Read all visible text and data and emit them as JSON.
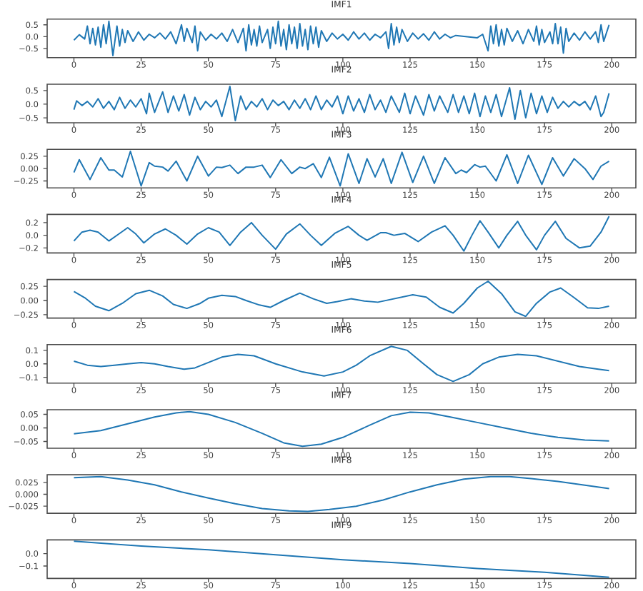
{
  "chart_data": [
    {
      "type": "line",
      "title": "IMF1",
      "color": "#1f77b4",
      "xlim": [
        -9.95,
        208.95
      ],
      "xticks": [
        0,
        25,
        50,
        75,
        100,
        125,
        150,
        175,
        200
      ],
      "ylim": [
        -0.89,
        0.74
      ],
      "yticks": [
        {
          "value": -0.5,
          "label": "−0.5"
        },
        {
          "value": 0,
          "label": "0.0"
        },
        {
          "value": 0.5,
          "label": "0.5"
        }
      ],
      "x": [
        0,
        2,
        4,
        5,
        6,
        7,
        8,
        9,
        10,
        11,
        12,
        13,
        14.5,
        16,
        17,
        18,
        19,
        20,
        22,
        24,
        26,
        28,
        30,
        32,
        34,
        36,
        38,
        40,
        41,
        42,
        44,
        45,
        46,
        47,
        49,
        51,
        53,
        55,
        57,
        59,
        61,
        63,
        64,
        65,
        66,
        67,
        68,
        69,
        70,
        72,
        73,
        74,
        75,
        76,
        77,
        78,
        79,
        80,
        81,
        82,
        83,
        84,
        85,
        86,
        87,
        88,
        89,
        90,
        91,
        92,
        94,
        96,
        98,
        100,
        102,
        104,
        106,
        108,
        110,
        112,
        114,
        116,
        117,
        118,
        119,
        120,
        121,
        122,
        124,
        126,
        128,
        130,
        132,
        134,
        136,
        138,
        140,
        142,
        146,
        150,
        152,
        154,
        155,
        156,
        157,
        158,
        159,
        160,
        161,
        163,
        165,
        167,
        169,
        171,
        172,
        173,
        174,
        175,
        177,
        178,
        179,
        180,
        181,
        182,
        183,
        184,
        186,
        188,
        190,
        192,
        194,
        195,
        196,
        197,
        199
      ],
      "values": [
        -0.15,
        0.08,
        -0.1,
        0.45,
        -0.3,
        0.35,
        -0.35,
        0.4,
        -0.45,
        0.5,
        -0.3,
        0.65,
        -0.8,
        0.45,
        -0.4,
        0.3,
        -0.25,
        0.25,
        -0.2,
        0.2,
        -0.15,
        0.1,
        -0.05,
        0.15,
        -0.1,
        0.2,
        -0.3,
        0.5,
        -0.2,
        0.35,
        -0.25,
        0.45,
        -0.6,
        0.2,
        -0.15,
        0.1,
        -0.1,
        0.15,
        -0.2,
        0.3,
        -0.25,
        0.35,
        -0.6,
        0.5,
        -0.35,
        0.3,
        -0.4,
        0.45,
        -0.25,
        0.3,
        -0.5,
        0.4,
        -0.3,
        0.65,
        -0.4,
        0.3,
        -0.55,
        0.5,
        -0.3,
        0.4,
        -0.5,
        0.55,
        -0.4,
        0.3,
        -0.55,
        0.45,
        -0.3,
        0.4,
        -0.45,
        0.25,
        -0.2,
        0.15,
        -0.1,
        0.1,
        -0.15,
        0.2,
        -0.1,
        0.15,
        -0.15,
        0.1,
        -0.05,
        0.2,
        -0.5,
        0.55,
        -0.35,
        0.4,
        -0.25,
        0.3,
        -0.2,
        0.15,
        -0.1,
        0.12,
        -0.15,
        0.2,
        -0.1,
        0.1,
        -0.05,
        0.05,
        0.0,
        -0.05,
        0.1,
        -0.6,
        0.45,
        -0.3,
        0.5,
        -0.4,
        0.3,
        -0.35,
        0.35,
        -0.2,
        0.25,
        -0.3,
        0.3,
        -0.2,
        0.45,
        -0.35,
        0.3,
        -0.25,
        0.2,
        -0.3,
        0.55,
        -0.3,
        0.4,
        -0.7,
        0.35,
        -0.2,
        0.15,
        -0.15,
        0.2,
        -0.1,
        0.2,
        -0.25,
        0.5,
        -0.2,
        0.5
      ]
    },
    {
      "type": "line",
      "title": "IMF2",
      "color": "#1f77b4",
      "xlim": [
        -9.95,
        208.95
      ],
      "xticks": [
        0,
        25,
        50,
        75,
        100,
        125,
        150,
        175,
        200
      ],
      "ylim": [
        -0.68,
        0.73
      ],
      "yticks": [
        {
          "value": -0.5,
          "label": "−0.5"
        },
        {
          "value": 0,
          "label": "0.0"
        },
        {
          "value": 0.5,
          "label": "0.5"
        }
      ],
      "x": [
        0,
        1,
        3,
        5,
        7,
        9,
        11,
        13,
        15,
        17,
        19,
        21,
        23,
        25,
        27,
        28,
        30,
        33,
        35,
        37,
        39,
        41,
        43,
        45,
        47,
        49,
        51,
        53,
        55,
        58,
        60,
        62,
        64,
        66,
        68,
        70,
        72,
        74,
        76,
        78,
        80,
        82,
        84,
        86,
        88,
        90,
        92,
        94,
        96,
        98,
        100,
        102,
        104,
        106,
        108,
        110,
        112,
        114,
        116,
        118,
        121,
        123,
        125,
        127,
        130,
        132,
        134,
        136,
        139,
        141,
        143,
        145,
        147,
        149,
        151,
        153,
        155,
        157,
        159,
        162,
        164,
        166,
        168,
        170,
        172,
        174,
        176,
        178,
        180,
        182,
        184,
        186,
        188,
        190,
        192,
        194,
        196,
        197,
        199
      ],
      "values": [
        -0.2,
        0.12,
        -0.05,
        0.1,
        -0.1,
        0.2,
        -0.15,
        0.1,
        -0.2,
        0.25,
        -0.15,
        0.15,
        -0.1,
        0.2,
        -0.35,
        0.4,
        -0.3,
        0.45,
        -0.3,
        0.3,
        -0.25,
        0.35,
        -0.4,
        0.25,
        -0.2,
        0.1,
        -0.1,
        0.15,
        -0.45,
        0.65,
        -0.6,
        0.3,
        -0.2,
        0.1,
        -0.1,
        0.2,
        -0.2,
        0.15,
        -0.05,
        0.1,
        -0.2,
        0.15,
        -0.15,
        0.2,
        -0.2,
        0.3,
        -0.2,
        0.15,
        -0.1,
        0.3,
        -0.35,
        0.3,
        -0.25,
        0.2,
        -0.3,
        0.35,
        -0.2,
        0.15,
        -0.3,
        0.3,
        -0.3,
        0.4,
        -0.35,
        0.3,
        -0.4,
        0.35,
        -0.25,
        0.3,
        -0.3,
        0.35,
        -0.3,
        0.3,
        -0.35,
        0.4,
        -0.45,
        0.3,
        -0.3,
        0.35,
        -0.45,
        0.6,
        -0.55,
        0.5,
        -0.5,
        0.4,
        -0.35,
        0.3,
        -0.3,
        0.25,
        -0.15,
        0.1,
        -0.1,
        0.1,
        -0.05,
        0.1,
        -0.2,
        0.3,
        -0.45,
        -0.3,
        0.4
      ]
    },
    {
      "type": "line",
      "title": "IMF3",
      "color": "#1f77b4",
      "xlim": [
        -9.95,
        208.95
      ],
      "xticks": [
        0,
        25,
        50,
        75,
        100,
        125,
        150,
        175,
        200
      ],
      "ylim": [
        -0.39,
        0.39
      ],
      "yticks": [
        {
          "value": -0.25,
          "label": "−0.25"
        },
        {
          "value": 0,
          "label": "0.00"
        },
        0.25
      ],
      "x": [
        0,
        2,
        6,
        10,
        13,
        15,
        18,
        21,
        25,
        28,
        30,
        33,
        35,
        38,
        42,
        46,
        50,
        53,
        55,
        58,
        61,
        64,
        67,
        70,
        73,
        77,
        81,
        84,
        86,
        89,
        92,
        95,
        99,
        102,
        106,
        109,
        112,
        115,
        118,
        122,
        126,
        130,
        134,
        138,
        142,
        144,
        146,
        149,
        151,
        153,
        157,
        161,
        165,
        169,
        174,
        178,
        182,
        186,
        190,
        193,
        196,
        199
      ],
      "values": [
        -0.08,
        0.18,
        -0.22,
        0.22,
        -0.03,
        -0.03,
        -0.17,
        0.35,
        -0.35,
        0.12,
        0.05,
        0.03,
        -0.05,
        0.15,
        -0.25,
        0.25,
        -0.15,
        0.03,
        0.02,
        0.07,
        -0.1,
        0.03,
        0.03,
        0.07,
        -0.18,
        0.18,
        -0.1,
        0.03,
        0.0,
        0.1,
        -0.18,
        0.23,
        -0.35,
        0.3,
        -0.3,
        0.2,
        -0.17,
        0.2,
        -0.3,
        0.33,
        -0.28,
        0.25,
        -0.3,
        0.22,
        -0.1,
        -0.03,
        -0.08,
        0.08,
        0.03,
        0.05,
        -0.25,
        0.28,
        -0.3,
        0.27,
        -0.32,
        0.22,
        -0.15,
        0.2,
        0.0,
        -0.22,
        0.05,
        0.15
      ]
    },
    {
      "type": "line",
      "title": "IMF4",
      "color": "#1f77b4",
      "xlim": [
        -9.95,
        208.95
      ],
      "xticks": [
        0,
        25,
        50,
        75,
        100,
        125,
        150,
        175,
        200
      ],
      "ylim": [
        -0.28,
        0.33
      ],
      "yticks": [
        {
          "value": -0.2,
          "label": "−0.2"
        },
        {
          "value": 0,
          "label": "0.0"
        },
        0.2
      ],
      "x": [
        0,
        3,
        6,
        9,
        13,
        17,
        20,
        23,
        26,
        30,
        34,
        38,
        42,
        46,
        50,
        54,
        58,
        62,
        66,
        70,
        75,
        79,
        84,
        88,
        92,
        97,
        102,
        106,
        109,
        114,
        116,
        119,
        123,
        128,
        133,
        138,
        141,
        145,
        148,
        151,
        154,
        158,
        161,
        165,
        168,
        172,
        175,
        179,
        183,
        188,
        192,
        196,
        199
      ],
      "values": [
        -0.09,
        0.05,
        0.08,
        0.05,
        -0.09,
        0.03,
        0.12,
        0.02,
        -0.12,
        0.02,
        0.1,
        0.0,
        -0.14,
        0.02,
        0.12,
        0.05,
        -0.16,
        0.05,
        0.2,
        0.0,
        -0.22,
        0.02,
        0.18,
        0.0,
        -0.16,
        0.03,
        0.14,
        0.0,
        -0.08,
        0.04,
        0.04,
        0.0,
        0.03,
        -0.1,
        0.05,
        0.15,
        0.0,
        -0.25,
        0.0,
        0.23,
        0.05,
        -0.2,
        0.0,
        0.22,
        0.0,
        -0.23,
        0.0,
        0.22,
        -0.05,
        -0.2,
        -0.17,
        0.05,
        0.3
      ]
    },
    {
      "type": "line",
      "title": "IMF5",
      "color": "#1f77b4",
      "xlim": [
        -9.95,
        208.95
      ],
      "xticks": [
        0,
        25,
        50,
        75,
        100,
        125,
        150,
        175,
        200
      ],
      "ylim": [
        -0.31,
        0.37
      ],
      "yticks": [
        {
          "value": -0.25,
          "label": "−0.25"
        },
        {
          "value": 0,
          "label": "0.00"
        },
        0.25
      ],
      "x": [
        0,
        4,
        8,
        13,
        18,
        23,
        28,
        33,
        37,
        42,
        47,
        50,
        55,
        60,
        64,
        69,
        73,
        78,
        84,
        89,
        94,
        98,
        103,
        108,
        113,
        118,
        126,
        131,
        136,
        141,
        145,
        150,
        154,
        159,
        164,
        168,
        172,
        177,
        181,
        186,
        191,
        195,
        199
      ],
      "values": [
        0.16,
        0.05,
        -0.1,
        -0.18,
        -0.05,
        0.12,
        0.18,
        0.08,
        -0.07,
        -0.14,
        -0.05,
        0.04,
        0.09,
        0.07,
        0.0,
        -0.08,
        -0.12,
        0.0,
        0.13,
        0.03,
        -0.05,
        -0.02,
        0.03,
        -0.01,
        -0.03,
        0.02,
        0.1,
        0.06,
        -0.12,
        -0.22,
        -0.05,
        0.22,
        0.34,
        0.12,
        -0.2,
        -0.28,
        -0.05,
        0.15,
        0.22,
        0.05,
        -0.13,
        -0.14,
        -0.1
      ]
    },
    {
      "type": "line",
      "title": "IMF6",
      "color": "#1f77b4",
      "xlim": [
        -9.95,
        208.95
      ],
      "xticks": [
        0,
        25,
        50,
        75,
        100,
        125,
        150,
        175,
        200
      ],
      "ylim": [
        -0.143,
        0.143
      ],
      "yticks": [
        {
          "value": -0.1,
          "label": "−0.1"
        },
        {
          "value": 0,
          "label": "0.0"
        },
        0.1
      ],
      "x": [
        0,
        5,
        10,
        15,
        20,
        25,
        30,
        35,
        41,
        45,
        50,
        55,
        61,
        67,
        75,
        85,
        93,
        100,
        105,
        110,
        118,
        124,
        130,
        135,
        141,
        147,
        152,
        158,
        165,
        172,
        180,
        188,
        195,
        199
      ],
      "values": [
        0.02,
        -0.01,
        -0.02,
        -0.01,
        0.0,
        0.01,
        0.0,
        -0.02,
        -0.04,
        -0.03,
        0.01,
        0.05,
        0.07,
        0.06,
        0.0,
        -0.06,
        -0.09,
        -0.06,
        -0.01,
        0.06,
        0.13,
        0.1,
        0.0,
        -0.08,
        -0.13,
        -0.08,
        0.0,
        0.05,
        0.07,
        0.06,
        0.02,
        -0.02,
        -0.04,
        -0.05
      ]
    },
    {
      "type": "line",
      "title": "IMF7",
      "color": "#1f77b4",
      "xlim": [
        -9.95,
        208.95
      ],
      "xticks": [
        0,
        25,
        50,
        75,
        100,
        125,
        150,
        175,
        200
      ],
      "ylim": [
        -0.075,
        0.067
      ],
      "yticks": [
        {
          "value": -0.05,
          "label": "−0.05"
        },
        {
          "value": 0,
          "label": "0.00"
        },
        0.05
      ],
      "x": [
        0,
        10,
        20,
        30,
        38,
        43,
        50,
        60,
        70,
        78,
        85,
        92,
        100,
        110,
        118,
        125,
        132,
        140,
        150,
        160,
        170,
        180,
        190,
        199
      ],
      "values": [
        -0.022,
        -0.01,
        0.015,
        0.04,
        0.055,
        0.06,
        0.05,
        0.02,
        -0.02,
        -0.055,
        -0.068,
        -0.06,
        -0.035,
        0.01,
        0.045,
        0.058,
        0.055,
        0.04,
        0.02,
        0.0,
        -0.02,
        -0.035,
        -0.045,
        -0.048
      ]
    },
    {
      "type": "line",
      "title": "IMF8",
      "color": "#1f77b4",
      "xlim": [
        -9.95,
        208.95
      ],
      "xticks": [
        0,
        25,
        50,
        75,
        100,
        125,
        150,
        175,
        200
      ],
      "ylim": [
        -0.04,
        0.041
      ],
      "yticks": [
        {
          "value": -0.025,
          "label": "−0.025"
        },
        {
          "value": 0,
          "label": "0.000"
        },
        0.025
      ],
      "x": [
        0,
        10,
        20,
        30,
        40,
        50,
        60,
        70,
        80,
        87,
        95,
        105,
        115,
        125,
        135,
        145,
        155,
        162,
        170,
        180,
        190,
        199
      ],
      "values": [
        0.035,
        0.037,
        0.03,
        0.02,
        0.005,
        -0.008,
        -0.02,
        -0.03,
        -0.035,
        -0.036,
        -0.032,
        -0.025,
        -0.012,
        0.005,
        0.02,
        0.032,
        0.037,
        0.037,
        0.033,
        0.027,
        0.019,
        0.012
      ]
    },
    {
      "type": "line",
      "title": "IMF9",
      "color": "#1f77b4",
      "xlim": [
        -9.95,
        208.95
      ],
      "xticks": [
        0,
        25,
        50,
        75,
        100,
        125,
        150,
        175,
        200
      ],
      "ylim": [
        -0.2,
        0.11
      ],
      "yticks": [
        {
          "value": -0.1,
          "label": "−0.1"
        },
        {
          "value": 0,
          "label": "0.0"
        }
      ],
      "x": [
        0,
        25,
        50,
        75,
        100,
        125,
        150,
        175,
        199
      ],
      "values": [
        0.1,
        0.06,
        0.03,
        -0.01,
        -0.05,
        -0.08,
        -0.12,
        -0.15,
        -0.19
      ]
    }
  ]
}
